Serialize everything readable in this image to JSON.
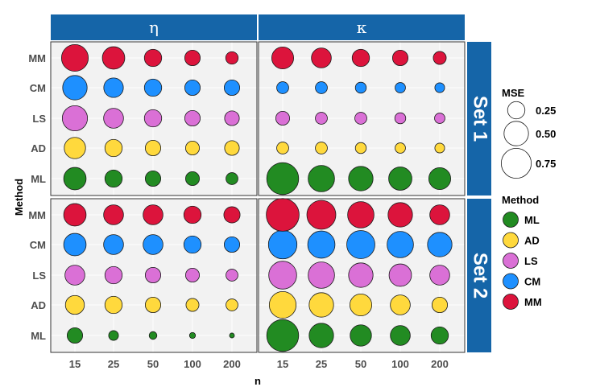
{
  "chart_data": {
    "type": "scatter",
    "xlabel": "n",
    "ylabel": "Method",
    "x_categories": [
      "15",
      "25",
      "50",
      "100",
      "200"
    ],
    "y_categories": [
      "ML",
      "AD",
      "LS",
      "CM",
      "MM"
    ],
    "columns": [
      "η",
      "κ"
    ],
    "rows": [
      "Set 1",
      "Set 2"
    ],
    "size_legend": {
      "title": "MSE",
      "values": [
        0.25,
        0.5,
        0.75
      ],
      "labels": [
        "0.25",
        "0.50",
        "0.75"
      ]
    },
    "color_legend": {
      "title": "Method",
      "entries": [
        {
          "label": "ML",
          "color": "#228b22"
        },
        {
          "label": "AD",
          "color": "#ffd93d"
        },
        {
          "label": "LS",
          "color": "#da70d6"
        },
        {
          "label": "CM",
          "color": "#1e90ff"
        },
        {
          "label": "MM",
          "color": "#dc143c"
        }
      ]
    },
    "colors": {
      "strip": "#1565a8",
      "panel_bg": "#f2f2f2",
      "grid": "#ffffff"
    },
    "panels": [
      {
        "row": "Set 1",
        "col": "η",
        "mse": {
          "MM": [
            0.6,
            0.42,
            0.25,
            0.2,
            0.13
          ],
          "CM": [
            0.5,
            0.32,
            0.25,
            0.2,
            0.2
          ],
          "LS": [
            0.53,
            0.33,
            0.25,
            0.2,
            0.18
          ],
          "AD": [
            0.38,
            0.25,
            0.2,
            0.16,
            0.18
          ],
          "ML": [
            0.42,
            0.25,
            0.2,
            0.16,
            0.12
          ]
        }
      },
      {
        "row": "Set 1",
        "col": "κ",
        "mse": {
          "MM": [
            0.4,
            0.33,
            0.25,
            0.2,
            0.14
          ],
          "CM": [
            0.12,
            0.12,
            0.1,
            0.09,
            0.08
          ],
          "LS": [
            0.16,
            0.12,
            0.12,
            0.1,
            0.09
          ],
          "AD": [
            0.12,
            0.12,
            0.1,
            0.09,
            0.08
          ],
          "ML": [
            0.85,
            0.58,
            0.5,
            0.45,
            0.4
          ]
        }
      },
      {
        "row": "Set 2",
        "col": "η",
        "mse": {
          "MM": [
            0.42,
            0.33,
            0.33,
            0.25,
            0.22
          ],
          "CM": [
            0.42,
            0.33,
            0.33,
            0.25,
            0.2
          ],
          "LS": [
            0.33,
            0.25,
            0.2,
            0.16,
            0.12
          ],
          "AD": [
            0.3,
            0.25,
            0.2,
            0.14,
            0.12
          ],
          "ML": [
            0.2,
            0.08,
            0.05,
            0.03,
            0.02
          ]
        }
      },
      {
        "row": "Set 2",
        "col": "κ",
        "mse": {
          "MM": [
            0.9,
            0.7,
            0.58,
            0.5,
            0.33
          ],
          "CM": [
            0.68,
            0.62,
            0.66,
            0.58,
            0.5
          ],
          "LS": [
            0.65,
            0.58,
            0.5,
            0.42,
            0.33
          ],
          "AD": [
            0.6,
            0.5,
            0.4,
            0.33,
            0.2
          ],
          "ML": [
            0.85,
            0.5,
            0.38,
            0.33,
            0.25
          ]
        }
      }
    ]
  }
}
